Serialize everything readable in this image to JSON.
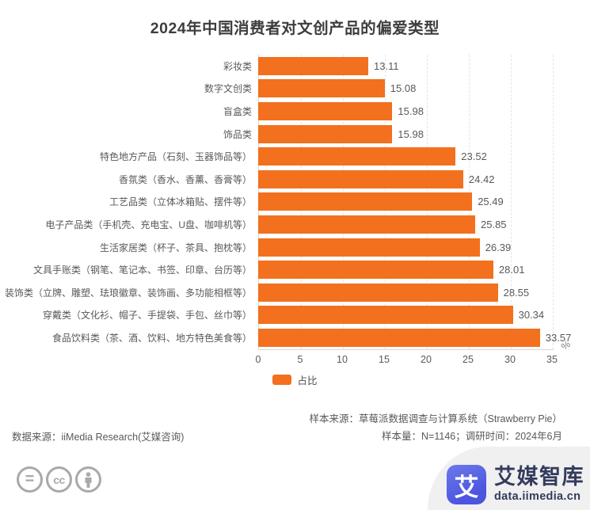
{
  "title": "2024年中国消费者对文创产品的偏爱类型",
  "chart_data": {
    "type": "bar",
    "orientation": "horizontal",
    "title": "2024年中国消费者对文创产品的偏爱类型",
    "categories": [
      "彩妆类",
      "数字文创类",
      "盲盒类",
      "饰品类",
      "特色地方产品（石刻、玉器饰品等）",
      "香氛类（香水、香薰、香膏等）",
      "工艺品类（立体冰箱贴、摆件等）",
      "电子产品类（手机壳、充电宝、U盘、咖啡机等）",
      "生活家居类（杯子、茶具、抱枕等）",
      "文具手账类（钢笔、笔记本、书签、印章、台历等）",
      "装饰类（立牌、雕塑、珐琅徽章、装饰画、多功能相框等）",
      "穿戴类（文化衫、帽子、手提袋、手包、丝巾等）",
      "食品饮料类（茶、酒、饮料、地方特色美食等）"
    ],
    "values": [
      13.11,
      15.08,
      15.98,
      15.98,
      23.52,
      24.42,
      25.49,
      25.85,
      26.39,
      28.01,
      28.55,
      30.34,
      33.57
    ],
    "series_name": "占比",
    "unit": "%",
    "xlim": [
      0,
      35
    ],
    "x_ticks": [
      0,
      5,
      10,
      15,
      20,
      25,
      30,
      35
    ],
    "grid": "vertical-dashed",
    "legend_position": "bottom-center",
    "bar_color": "#F2701E"
  },
  "legend": {
    "label": "占比"
  },
  "axis": {
    "unit_label": "%"
  },
  "footer": {
    "data_source": "数据来源：iiMedia Research(艾媒咨询)",
    "sample_source": "样本来源：草莓派数据调查与计算系统（Strawberry Pie）",
    "sample_info": "样本量：N=1146；调研时间：2024年6月",
    "brand_name": "艾媒智库",
    "brand_domain": "data.iimedia.cn",
    "brand_icon_glyph": "艾",
    "cc_badge_cc": "cc"
  },
  "colors": {
    "bar": "#F2701E",
    "title_text": "#3d3d3d",
    "label_text": "#595959",
    "brand_navy": "#333b5e",
    "footer_shape": "#f0f0f0"
  }
}
